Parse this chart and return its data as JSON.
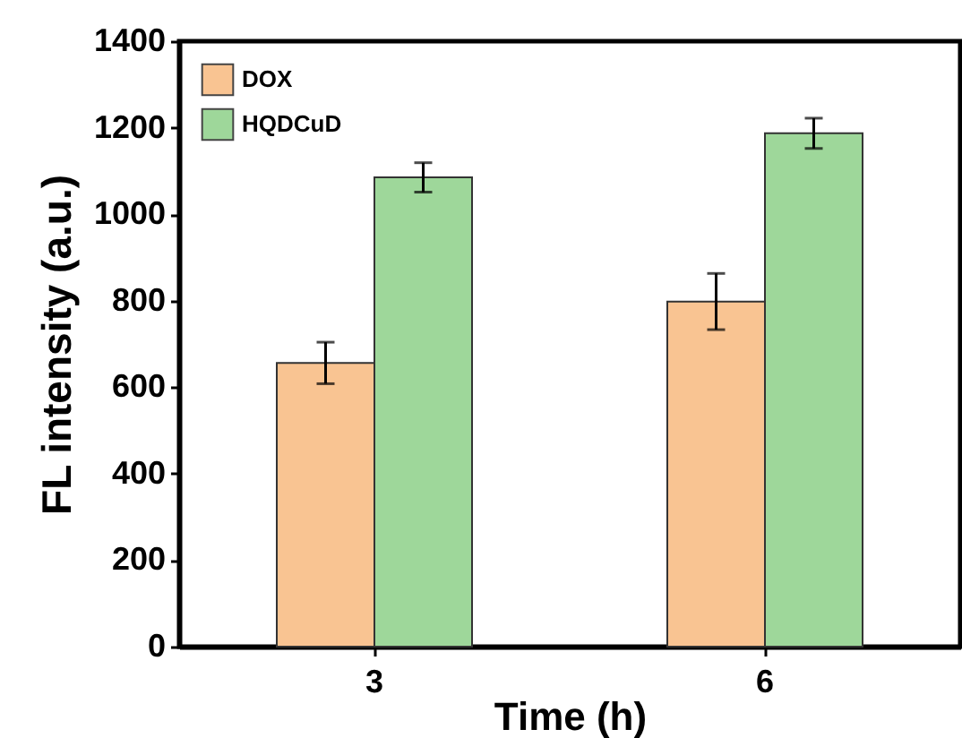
{
  "chart_data": {
    "type": "bar",
    "xlabel": "Time (h)",
    "ylabel": "FL intensity (a.u.)",
    "categories": [
      "3",
      "6"
    ],
    "series": [
      {
        "name": "DOX",
        "color": "#f9c492",
        "values": [
          656,
          798
        ],
        "errors": [
          48,
          65
        ]
      },
      {
        "name": "HQDCuD",
        "color": "#9ed79a",
        "values": [
          1085,
          1187
        ],
        "errors": [
          34,
          35
        ]
      }
    ],
    "ylim": [
      0,
      1400
    ],
    "yticks": [
      0,
      200,
      400,
      600,
      800,
      1000,
      1200,
      1400
    ],
    "grid": false,
    "legend": "top left"
  }
}
